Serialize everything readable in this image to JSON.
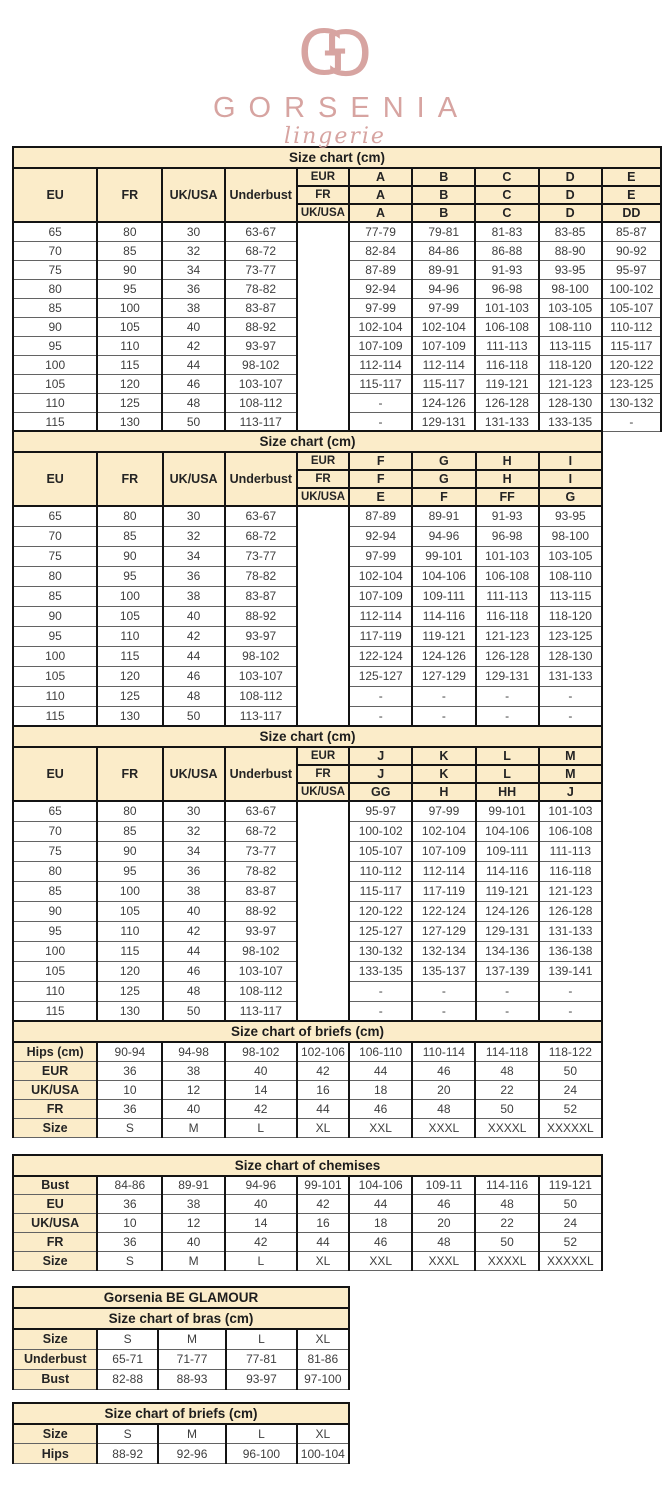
{
  "logo": {
    "brand": "GORSENIA",
    "tagline": "lingerie",
    "monogram_letter": "G",
    "pink": "#d7a4a1"
  },
  "colors": {
    "header_bg": "#fbecc9",
    "accent_pink": "#d7a4a1"
  },
  "bra_size_charts": [
    {
      "title": "Size chart (cm)",
      "columns": [
        "EU",
        "FR",
        "UK/USA",
        "Underbust"
      ],
      "cup_header_rows": [
        {
          "label": "EUR",
          "cups": [
            "A",
            "B",
            "C",
            "D",
            "E"
          ]
        },
        {
          "label": "FR",
          "cups": [
            "A",
            "B",
            "C",
            "D",
            "E"
          ]
        },
        {
          "label": "UK/USA",
          "cups": [
            "A",
            "B",
            "C",
            "D",
            "DD"
          ]
        }
      ],
      "rows": [
        {
          "eu": "65",
          "fr": "80",
          "uk_usa": "30",
          "underbust": "63-67",
          "cup_values": [
            "77-79",
            "79-81",
            "81-83",
            "83-85",
            "85-87"
          ]
        },
        {
          "eu": "70",
          "fr": "85",
          "uk_usa": "32",
          "underbust": "68-72",
          "cup_values": [
            "82-84",
            "84-86",
            "86-88",
            "88-90",
            "90-92"
          ]
        },
        {
          "eu": "75",
          "fr": "90",
          "uk_usa": "34",
          "underbust": "73-77",
          "cup_values": [
            "87-89",
            "89-91",
            "91-93",
            "93-95",
            "95-97"
          ]
        },
        {
          "eu": "80",
          "fr": "95",
          "uk_usa": "36",
          "underbust": "78-82",
          "cup_values": [
            "92-94",
            "94-96",
            "96-98",
            "98-100",
            "100-102"
          ]
        },
        {
          "eu": "85",
          "fr": "100",
          "uk_usa": "38",
          "underbust": "83-87",
          "cup_values": [
            "97-99",
            "97-99",
            "101-103",
            "103-105",
            "105-107"
          ]
        },
        {
          "eu": "90",
          "fr": "105",
          "uk_usa": "40",
          "underbust": "88-92",
          "cup_values": [
            "102-104",
            "102-104",
            "106-108",
            "108-110",
            "110-112"
          ]
        },
        {
          "eu": "95",
          "fr": "110",
          "uk_usa": "42",
          "underbust": "93-97",
          "cup_values": [
            "107-109",
            "107-109",
            "111-113",
            "113-115",
            "115-117"
          ]
        },
        {
          "eu": "100",
          "fr": "115",
          "uk_usa": "44",
          "underbust": "98-102",
          "cup_values": [
            "112-114",
            "112-114",
            "116-118",
            "118-120",
            "120-122"
          ]
        },
        {
          "eu": "105",
          "fr": "120",
          "uk_usa": "46",
          "underbust": "103-107",
          "cup_values": [
            "115-117",
            "115-117",
            "119-121",
            "121-123",
            "123-125"
          ]
        },
        {
          "eu": "110",
          "fr": "125",
          "uk_usa": "48",
          "underbust": "108-112",
          "cup_values": [
            "-",
            "124-126",
            "126-128",
            "128-130",
            "130-132"
          ]
        },
        {
          "eu": "115",
          "fr": "130",
          "uk_usa": "50",
          "underbust": "113-117",
          "cup_values": [
            "-",
            "129-131",
            "131-133",
            "133-135",
            "-"
          ]
        }
      ]
    },
    {
      "title": "Size chart (cm)",
      "columns": [
        "EU",
        "FR",
        "UK/USA",
        "Underbust"
      ],
      "cup_header_rows": [
        {
          "label": "EUR",
          "cups": [
            "F",
            "G",
            "H",
            "I"
          ]
        },
        {
          "label": "FR",
          "cups": [
            "F",
            "G",
            "H",
            "I"
          ]
        },
        {
          "label": "UK/USA",
          "cups": [
            "E",
            "F",
            "FF",
            "G"
          ]
        }
      ],
      "rows": [
        {
          "eu": "65",
          "fr": "80",
          "uk_usa": "30",
          "underbust": "63-67",
          "cup_values": [
            "87-89",
            "89-91",
            "91-93",
            "93-95"
          ]
        },
        {
          "eu": "70",
          "fr": "85",
          "uk_usa": "32",
          "underbust": "68-72",
          "cup_values": [
            "92-94",
            "94-96",
            "96-98",
            "98-100"
          ]
        },
        {
          "eu": "75",
          "fr": "90",
          "uk_usa": "34",
          "underbust": "73-77",
          "cup_values": [
            "97-99",
            "99-101",
            "101-103",
            "103-105"
          ]
        },
        {
          "eu": "80",
          "fr": "95",
          "uk_usa": "36",
          "underbust": "78-82",
          "cup_values": [
            "102-104",
            "104-106",
            "106-108",
            "108-110"
          ]
        },
        {
          "eu": "85",
          "fr": "100",
          "uk_usa": "38",
          "underbust": "83-87",
          "cup_values": [
            "107-109",
            "109-111",
            "111-113",
            "113-115"
          ]
        },
        {
          "eu": "90",
          "fr": "105",
          "uk_usa": "40",
          "underbust": "88-92",
          "cup_values": [
            "112-114",
            "114-116",
            "116-118",
            "118-120"
          ]
        },
        {
          "eu": "95",
          "fr": "110",
          "uk_usa": "42",
          "underbust": "93-97",
          "cup_values": [
            "117-119",
            "119-121",
            "121-123",
            "123-125"
          ]
        },
        {
          "eu": "100",
          "fr": "115",
          "uk_usa": "44",
          "underbust": "98-102",
          "cup_values": [
            "122-124",
            "124-126",
            "126-128",
            "128-130"
          ]
        },
        {
          "eu": "105",
          "fr": "120",
          "uk_usa": "46",
          "underbust": "103-107",
          "cup_values": [
            "125-127",
            "127-129",
            "129-131",
            "131-133"
          ]
        },
        {
          "eu": "110",
          "fr": "125",
          "uk_usa": "48",
          "underbust": "108-112",
          "cup_values": [
            "-",
            "-",
            "-",
            "-"
          ]
        },
        {
          "eu": "115",
          "fr": "130",
          "uk_usa": "50",
          "underbust": "113-117",
          "cup_values": [
            "-",
            "-",
            "-",
            "-"
          ]
        }
      ]
    },
    {
      "title": "Size chart (cm)",
      "columns": [
        "EU",
        "FR",
        "UK/USA",
        "Underbust"
      ],
      "cup_header_rows": [
        {
          "label": "EUR",
          "cups": [
            "J",
            "K",
            "L",
            "M"
          ]
        },
        {
          "label": "FR",
          "cups": [
            "J",
            "K",
            "L",
            "M"
          ]
        },
        {
          "label": "UK/USA",
          "cups": [
            "GG",
            "H",
            "HH",
            "J"
          ]
        }
      ],
      "rows": [
        {
          "eu": "65",
          "fr": "80",
          "uk_usa": "30",
          "underbust": "63-67",
          "cup_values": [
            "95-97",
            "97-99",
            "99-101",
            "101-103"
          ]
        },
        {
          "eu": "70",
          "fr": "85",
          "uk_usa": "32",
          "underbust": "68-72",
          "cup_values": [
            "100-102",
            "102-104",
            "104-106",
            "106-108"
          ]
        },
        {
          "eu": "75",
          "fr": "90",
          "uk_usa": "34",
          "underbust": "73-77",
          "cup_values": [
            "105-107",
            "107-109",
            "109-111",
            "111-113"
          ]
        },
        {
          "eu": "80",
          "fr": "95",
          "uk_usa": "36",
          "underbust": "78-82",
          "cup_values": [
            "110-112",
            "112-114",
            "114-116",
            "116-118"
          ]
        },
        {
          "eu": "85",
          "fr": "100",
          "uk_usa": "38",
          "underbust": "83-87",
          "cup_values": [
            "115-117",
            "117-119",
            "119-121",
            "121-123"
          ]
        },
        {
          "eu": "90",
          "fr": "105",
          "uk_usa": "40",
          "underbust": "88-92",
          "cup_values": [
            "120-122",
            "122-124",
            "124-126",
            "126-128"
          ]
        },
        {
          "eu": "95",
          "fr": "110",
          "uk_usa": "42",
          "underbust": "93-97",
          "cup_values": [
            "125-127",
            "127-129",
            "129-131",
            "131-133"
          ]
        },
        {
          "eu": "100",
          "fr": "115",
          "uk_usa": "44",
          "underbust": "98-102",
          "cup_values": [
            "130-132",
            "132-134",
            "134-136",
            "136-138"
          ]
        },
        {
          "eu": "105",
          "fr": "120",
          "uk_usa": "46",
          "underbust": "103-107",
          "cup_values": [
            "133-135",
            "135-137",
            "137-139",
            "139-141"
          ]
        },
        {
          "eu": "110",
          "fr": "125",
          "uk_usa": "48",
          "underbust": "108-112",
          "cup_values": [
            "-",
            "-",
            "-",
            "-"
          ]
        },
        {
          "eu": "115",
          "fr": "130",
          "uk_usa": "50",
          "underbust": "113-117",
          "cup_values": [
            "-",
            "-",
            "-",
            "-"
          ]
        }
      ]
    }
  ],
  "briefs_chart": {
    "title": "Size chart of briefs (cm)",
    "rows": [
      {
        "label": "Hips (cm)",
        "values": [
          "90-94",
          "94-98",
          "98-102",
          "102-106",
          "106-110",
          "110-114",
          "114-118",
          "118-122"
        ]
      },
      {
        "label": "EUR",
        "values": [
          "36",
          "38",
          "40",
          "42",
          "44",
          "46",
          "48",
          "50"
        ]
      },
      {
        "label": "UK/USA",
        "values": [
          "10",
          "12",
          "14",
          "16",
          "18",
          "20",
          "22",
          "24"
        ]
      },
      {
        "label": "FR",
        "values": [
          "36",
          "40",
          "42",
          "44",
          "46",
          "48",
          "50",
          "52"
        ]
      },
      {
        "label": "Size",
        "values": [
          "S",
          "M",
          "L",
          "XL",
          "XXL",
          "XXXL",
          "XXXXL",
          "XXXXXL"
        ]
      }
    ]
  },
  "chemises_chart": {
    "title": "Size chart of chemises",
    "rows": [
      {
        "label": "Bust",
        "values": [
          "84-86",
          "89-91",
          "94-96",
          "99-101",
          "104-106",
          "109-11",
          "114-116",
          "119-121"
        ]
      },
      {
        "label": "EU",
        "values": [
          "36",
          "38",
          "40",
          "42",
          "44",
          "46",
          "48",
          "50"
        ]
      },
      {
        "label": "UK/USA",
        "values": [
          "10",
          "12",
          "14",
          "16",
          "18",
          "20",
          "22",
          "24"
        ]
      },
      {
        "label": "FR",
        "values": [
          "36",
          "40",
          "42",
          "44",
          "46",
          "48",
          "50",
          "52"
        ]
      },
      {
        "label": "Size",
        "values": [
          "S",
          "M",
          "L",
          "XL",
          "XXL",
          "XXXL",
          "XXXXL",
          "XXXXXL"
        ]
      }
    ]
  },
  "glamour_bras_chart": {
    "brand_title": "Gorsenia BE GLAMOUR",
    "title": "Size chart of bras (cm)",
    "rows": [
      {
        "label": "Size",
        "values": [
          "S",
          "M",
          "L",
          "XL"
        ]
      },
      {
        "label": "Underbust",
        "values": [
          "65-71",
          "71-77",
          "77-81",
          "81-86"
        ]
      },
      {
        "label": "Bust",
        "values": [
          "82-88",
          "88-93",
          "93-97",
          "97-100"
        ]
      }
    ]
  },
  "glamour_briefs_chart": {
    "title": "Size chart of briefs (cm)",
    "rows": [
      {
        "label": "Size",
        "values": [
          "S",
          "M",
          "L",
          "XL"
        ]
      },
      {
        "label": "Hips",
        "values": [
          "88-92",
          "92-96",
          "96-100",
          "100-104"
        ]
      }
    ]
  }
}
